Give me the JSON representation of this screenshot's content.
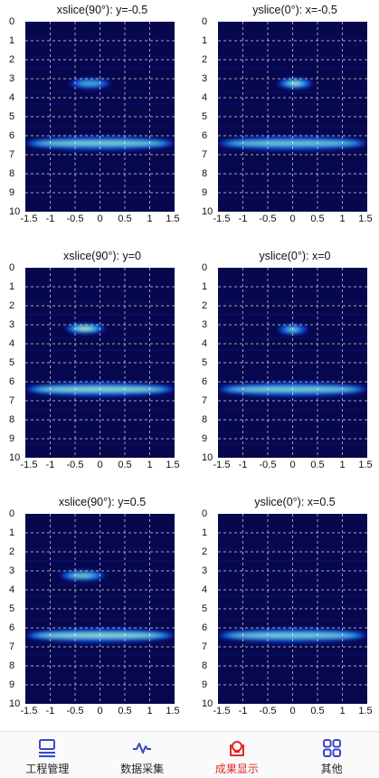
{
  "panels": [
    {
      "title": "xslice(90°): y=-0.5",
      "bands": [
        {
          "y": 3.25,
          "x0": -0.6,
          "x1": 0.2,
          "strength": 0.55
        },
        {
          "y": 6.4,
          "x0": -1.5,
          "x1": 1.5,
          "strength": 0.75
        }
      ]
    },
    {
      "title": "yslice(0°): x=-0.5",
      "bands": [
        {
          "y": 3.25,
          "x0": -0.3,
          "x1": 0.4,
          "strength": 0.95
        },
        {
          "y": 6.4,
          "x0": -1.5,
          "x1": 1.5,
          "strength": 0.7
        }
      ]
    },
    {
      "title": "xslice(90°): y=0",
      "bands": [
        {
          "y": 3.2,
          "x0": -0.7,
          "x1": 0.1,
          "strength": 1.0
        },
        {
          "y": 6.4,
          "x0": -1.5,
          "x1": 1.5,
          "strength": 0.85
        }
      ]
    },
    {
      "title": "yslice(0°): x=0",
      "bands": [
        {
          "y": 3.25,
          "x0": -0.3,
          "x1": 0.3,
          "strength": 0.7
        },
        {
          "y": 6.4,
          "x0": -1.5,
          "x1": 1.5,
          "strength": 0.75
        }
      ]
    },
    {
      "title": "xslice(90°): y=0.5",
      "bands": [
        {
          "y": 3.25,
          "x0": -0.8,
          "x1": 0.1,
          "strength": 0.7
        },
        {
          "y": 6.4,
          "x0": -1.5,
          "x1": 1.5,
          "strength": 0.85
        }
      ]
    },
    {
      "title": "yslice(0°): x=0.5",
      "bands": [
        {
          "y": 6.4,
          "x0": -1.5,
          "x1": 1.5,
          "strength": 0.75
        }
      ]
    }
  ],
  "y_ticks": [
    "0",
    "1",
    "2",
    "3",
    "4",
    "5",
    "6",
    "7",
    "8",
    "9",
    "10"
  ],
  "x_ticks": [
    "-1.5",
    "-1",
    "-0.5",
    "0",
    "0.5",
    "1",
    "1.5"
  ],
  "chart_data": {
    "type": "heatmap",
    "xlim": [
      -1.5,
      1.5
    ],
    "ylim": [
      0,
      10
    ],
    "grid": true,
    "colormap": "jet"
  },
  "tabbar": {
    "active_color": "#e0282a",
    "icon_color": "#3b46c9",
    "tabs": [
      {
        "label": "工程管理",
        "icon": "project-icon",
        "active": false
      },
      {
        "label": "数据采集",
        "icon": "waveform-icon",
        "active": false
      },
      {
        "label": "成果显示",
        "icon": "results-icon",
        "active": true
      },
      {
        "label": "其他",
        "icon": "grid-apps-icon",
        "active": false
      }
    ]
  }
}
